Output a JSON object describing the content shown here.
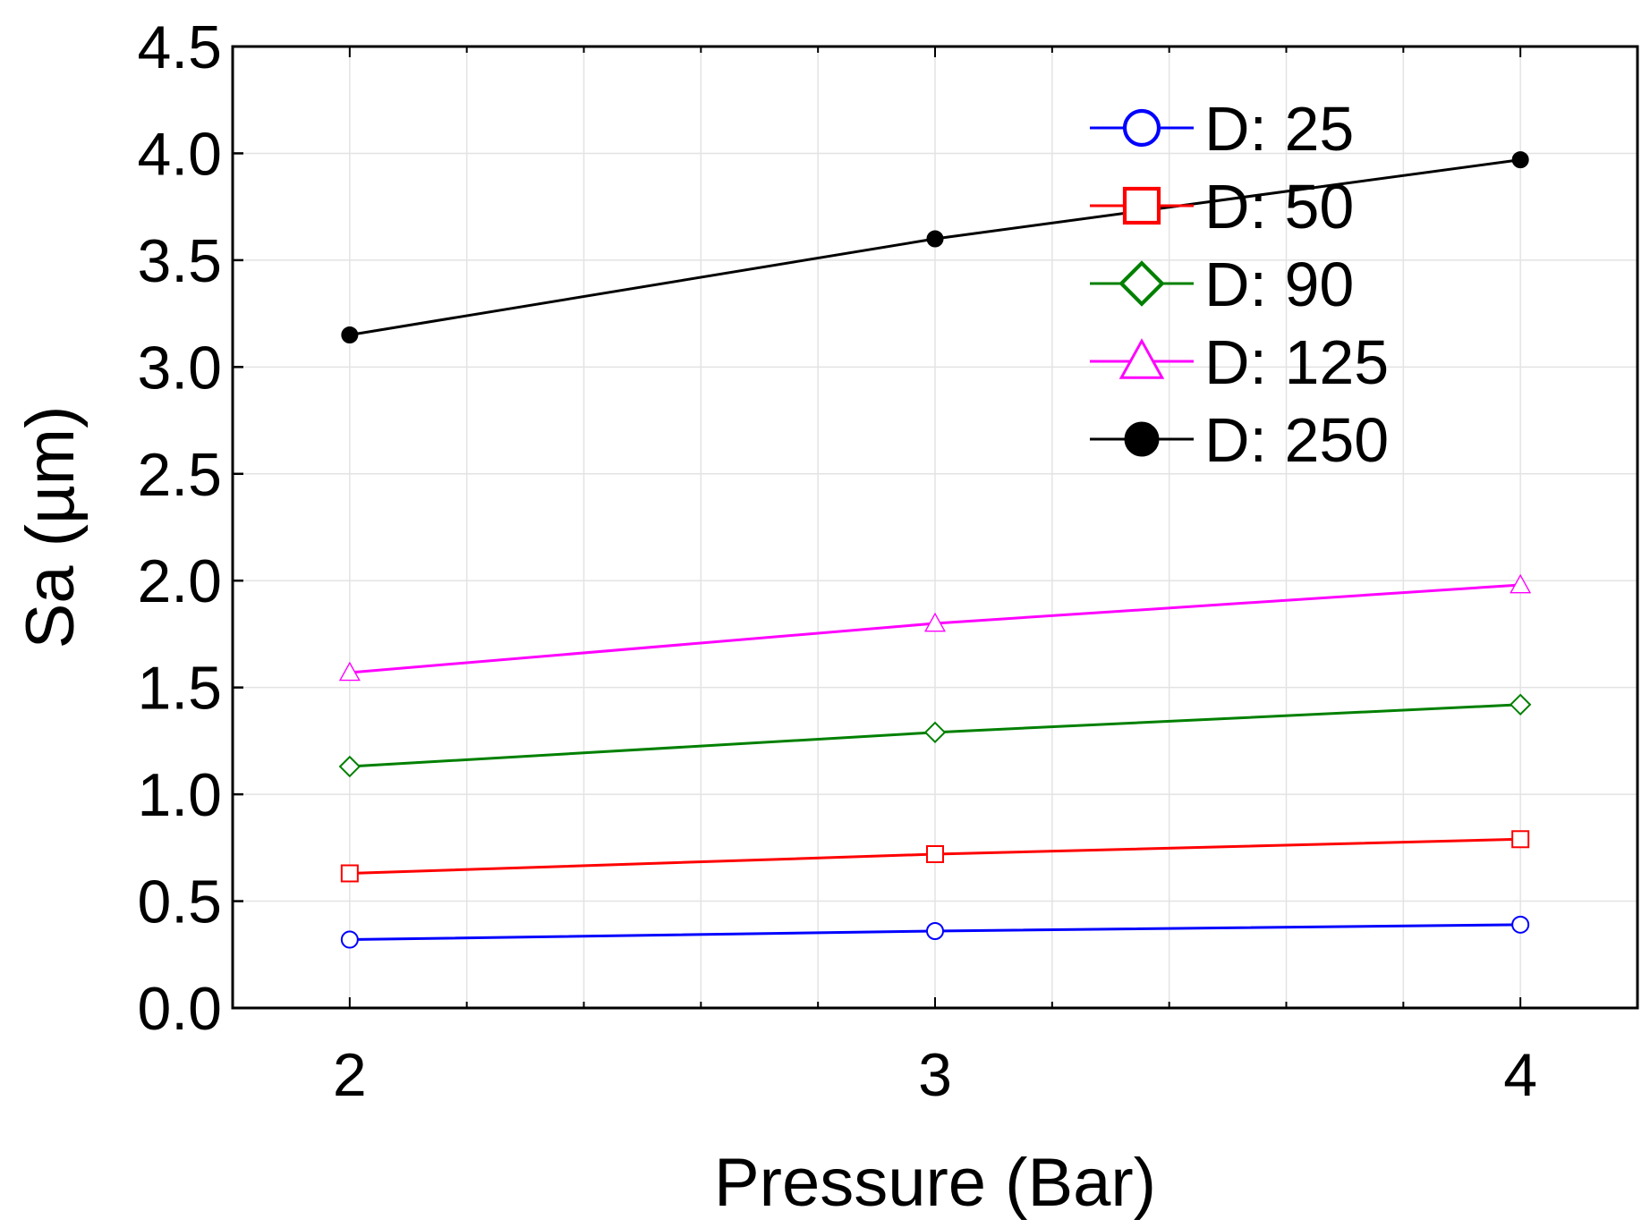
{
  "chart_data": {
    "type": "line",
    "title": "",
    "xlabel": "Pressure (Bar)",
    "ylabel": "Sa (µm)",
    "x": [
      2,
      3,
      4
    ],
    "xlim": [
      1.8,
      4.2
    ],
    "ylim": [
      0.0,
      4.5
    ],
    "xticks": [
      2,
      3,
      4
    ],
    "xtick_labels": [
      "2",
      "3",
      "4"
    ],
    "yticks": [
      0.0,
      0.5,
      1.0,
      1.5,
      2.0,
      2.5,
      3.0,
      3.5,
      4.0,
      4.5
    ],
    "ytick_labels": [
      "0.0",
      "0.5",
      "1.0",
      "1.5",
      "2.0",
      "2.5",
      "3.0",
      "3.5",
      "4.0",
      "4.5"
    ],
    "grid": true,
    "legend_position": "top-right",
    "series": [
      {
        "name": "D: 25",
        "values": [
          0.32,
          0.36,
          0.39
        ],
        "color": "#0000ff",
        "marker": "circle"
      },
      {
        "name": "D: 50",
        "values": [
          0.63,
          0.72,
          0.79
        ],
        "color": "#ff0000",
        "marker": "square"
      },
      {
        "name": "D: 90",
        "values": [
          1.13,
          1.29,
          1.42
        ],
        "color": "#008000",
        "marker": "diamond"
      },
      {
        "name": "D: 125",
        "values": [
          1.57,
          1.8,
          1.98
        ],
        "color": "#ff00ff",
        "marker": "triangle"
      },
      {
        "name": "D: 250",
        "values": [
          3.15,
          3.6,
          3.97
        ],
        "color": "#000000",
        "marker": "filled-circle"
      }
    ]
  }
}
